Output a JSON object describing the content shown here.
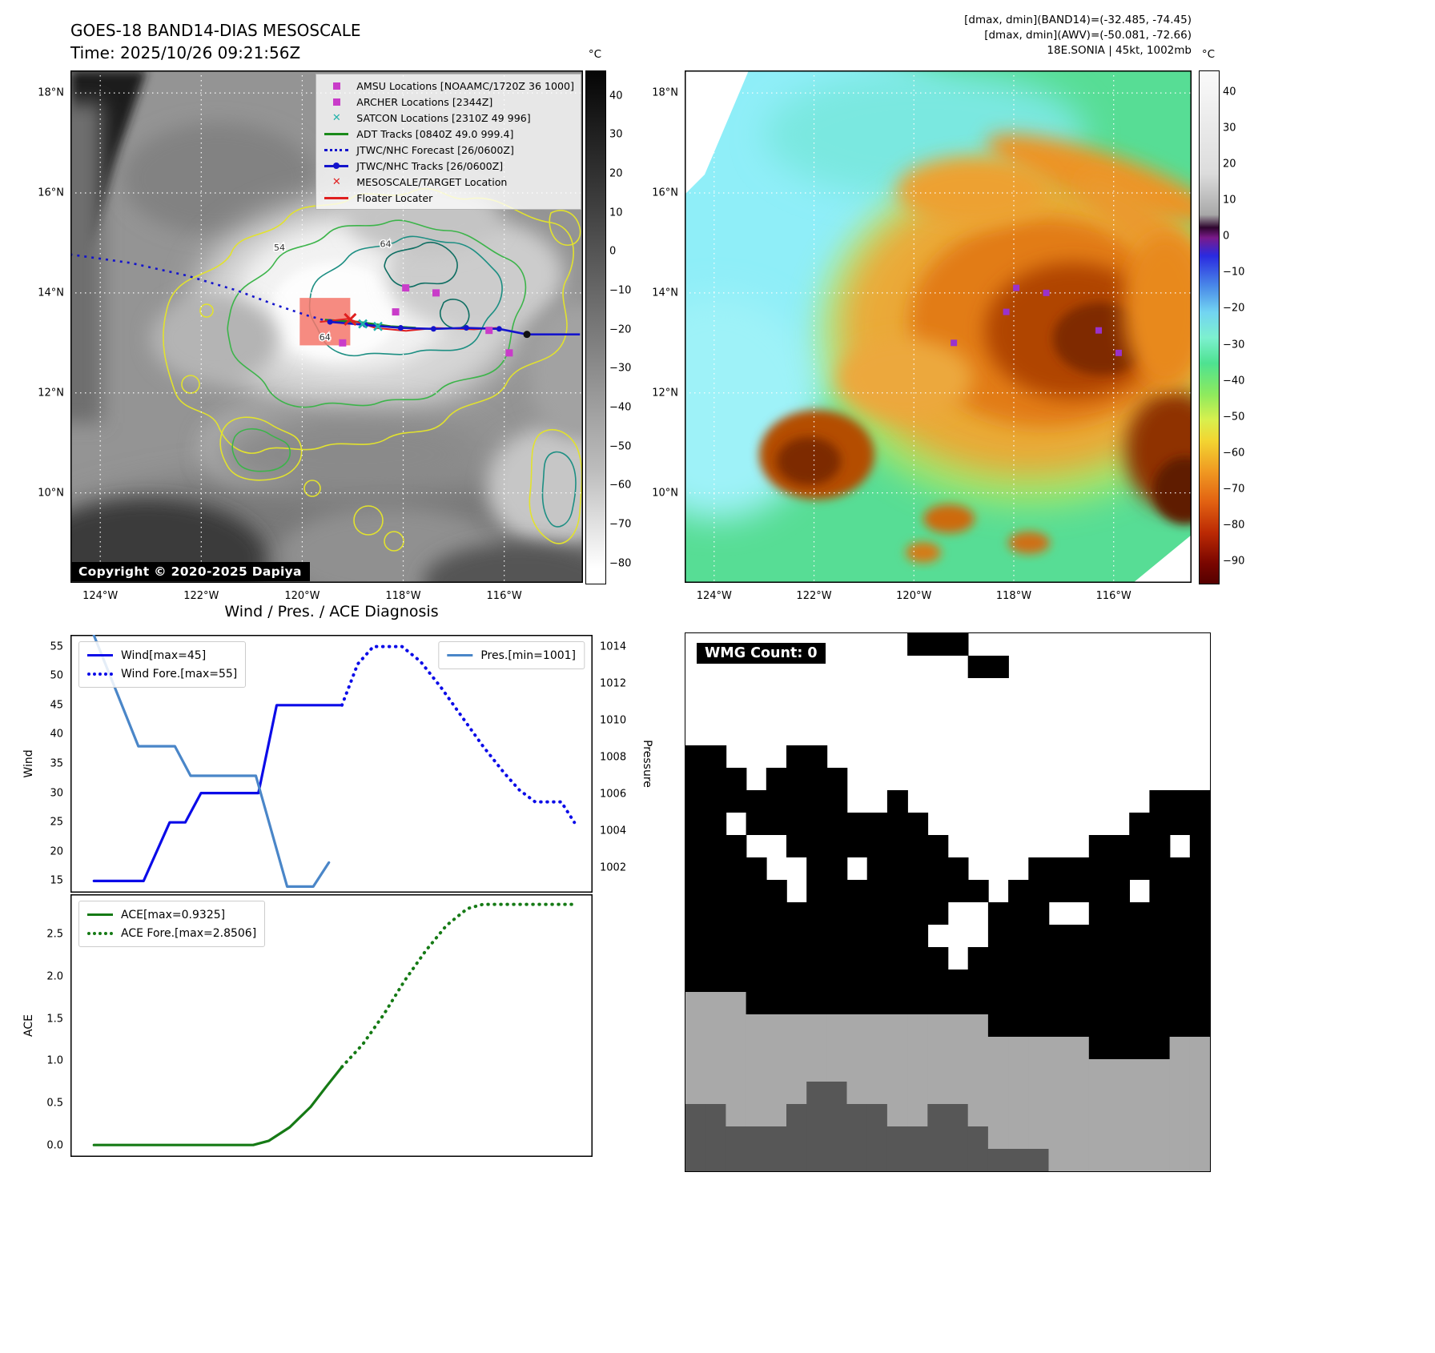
{
  "panel1": {
    "title_line1": "GOES-18 BAND14-DIAS MESOSCALE",
    "title_line2": "Time: 2025/10/26 09:21:56Z",
    "copyright": "Copyright © 2020-2025 Dapiya",
    "colorbar": {
      "unit": "°C",
      "ticks": [
        "40",
        "30",
        "20",
        "10",
        "0",
        "−10",
        "−20",
        "−30",
        "−40",
        "−50",
        "−60",
        "−70",
        "−80"
      ]
    },
    "legend": [
      {
        "marker": "square",
        "color": "#c93cc9",
        "label": "AMSU Locations [NOAAMC/1720Z 36 1000]"
      },
      {
        "marker": "square",
        "color": "#c93cc9",
        "label": "ARCHER Locations [2344Z]"
      },
      {
        "marker": "x",
        "color": "#20b2aa",
        "label": "SATCON Locations [2310Z 49 996]"
      },
      {
        "marker": "line",
        "color": "#1a8a1a",
        "label": "ADT Tracks [0840Z 49.0 999.4]"
      },
      {
        "marker": "dotted",
        "color": "#1414cc",
        "label": "JTWC/NHC Forecast [26/0600Z]"
      },
      {
        "marker": "line-dot",
        "color": "#1414cc",
        "label": "JTWC/NHC Tracks [26/0600Z]"
      },
      {
        "marker": "x",
        "color": "#e02020",
        "label": "MESOSCALE/TARGET Location"
      },
      {
        "marker": "line",
        "color": "#e02020",
        "label": "Floater Locater"
      }
    ],
    "contour_labels": [
      {
        "text": "54",
        "lon": -120.45,
        "lat": 14.85
      },
      {
        "text": "64",
        "lon": -118.35,
        "lat": 14.92
      },
      {
        "text": "64",
        "lon": -119.55,
        "lat": 13.05
      }
    ],
    "overlays": {
      "target_box": {
        "lon": [
          -120.05,
          -119.05
        ],
        "lat": [
          12.95,
          13.9
        ]
      },
      "forecast_track": [
        [
          -124.6,
          14.77
        ],
        [
          -123.4,
          14.6
        ],
        [
          -122.3,
          14.35
        ],
        [
          -121.3,
          14.05
        ],
        [
          -120.5,
          13.75
        ],
        [
          -119.9,
          13.55
        ],
        [
          -119.45,
          13.42
        ]
      ],
      "jtwc_track": [
        [
          -119.45,
          13.42
        ],
        [
          -118.75,
          13.36
        ],
        [
          -118.05,
          13.3
        ],
        [
          -117.4,
          13.28
        ],
        [
          -116.75,
          13.3
        ],
        [
          -116.1,
          13.28
        ],
        [
          -115.55,
          13.17
        ],
        [
          -114.5,
          13.17
        ]
      ],
      "adt_track": [
        [
          -119.55,
          13.46
        ],
        [
          -118.9,
          13.42
        ],
        [
          -118.25,
          13.33
        ],
        [
          -117.75,
          13.3
        ]
      ],
      "floater_track": [
        [
          -119.65,
          13.42
        ],
        [
          -119.1,
          13.48
        ],
        [
          -118.55,
          13.3
        ],
        [
          -117.95,
          13.24
        ],
        [
          -117.35,
          13.3
        ],
        [
          -116.6,
          13.27
        ],
        [
          -116.15,
          13.3
        ]
      ],
      "amsu_points": [
        [
          -117.95,
          14.1
        ],
        [
          -117.35,
          14.0
        ],
        [
          -118.15,
          13.62
        ],
        [
          -119.2,
          13.0
        ],
        [
          -116.3,
          13.25
        ],
        [
          -115.9,
          12.8
        ]
      ],
      "satcon_points": [
        [
          -118.8,
          13.38
        ],
        [
          -118.5,
          13.33
        ]
      ],
      "target_point": [
        -119.05,
        13.47
      ],
      "end_point": [
        -115.55,
        13.17
      ]
    }
  },
  "panel2": {
    "header_line1": "[dmax, dmin](BAND14)=(-32.485, -74.45)",
    "header_line2": "[dmax, dmin](AWV)=(-50.081, -72.66)",
    "header_line3": "18E.SONIA | 45kt, 1002mb",
    "colorbar": {
      "unit": "°C",
      "ticks": [
        "40",
        "30",
        "20",
        "10",
        "0",
        "−10",
        "−20",
        "−30",
        "−40",
        "−50",
        "−60",
        "−70",
        "−80",
        "−90"
      ]
    }
  },
  "geo": {
    "lat_ticks": [
      {
        "value": 18,
        "label": "18°N"
      },
      {
        "value": 16,
        "label": "16°N"
      },
      {
        "value": 14,
        "label": "14°N"
      },
      {
        "value": 12,
        "label": "12°N"
      },
      {
        "value": 10,
        "label": "10°N"
      }
    ],
    "lon_ticks": [
      {
        "value": -124,
        "label": "124°W"
      },
      {
        "value": -122,
        "label": "122°W"
      },
      {
        "value": -120,
        "label": "120°W"
      },
      {
        "value": -118,
        "label": "118°W"
      },
      {
        "value": -116,
        "label": "116°W"
      }
    ],
    "lat_range": [
      18.45,
      8.2
    ],
    "lon_range": [
      -124.59,
      -114.44
    ]
  },
  "panel3": {
    "title": "Wind / Pres. / ACE Diagnosis",
    "wind_axis_label": "Wind",
    "pressure_axis_label": "Pressure",
    "ace_axis_label": "ACE"
  },
  "chart_data": [
    {
      "type": "line",
      "title": "Wind / Pres. / ACE Diagnosis",
      "x_range": [
        0,
        100
      ],
      "y_left_label": "Wind",
      "y_left_ticks": [
        15,
        20,
        25,
        30,
        35,
        40,
        45,
        50,
        55
      ],
      "y_left_range": [
        13,
        57
      ],
      "y_right_label": "Pressure",
      "y_right_ticks": [
        1002,
        1004,
        1006,
        1008,
        1010,
        1012,
        1014
      ],
      "y_right_range": [
        1000.67,
        1014.63
      ],
      "series": [
        {
          "name": "Wind[max=45]",
          "color": "#0b0be8",
          "style": "solid",
          "axis": "left",
          "points": [
            [
              4.5,
              15
            ],
            [
              14,
              15
            ],
            [
              19,
              25
            ],
            [
              22,
              25
            ],
            [
              25,
              30
            ],
            [
              36,
              30
            ],
            [
              39.5,
              45
            ],
            [
              52,
              45
            ]
          ]
        },
        {
          "name": "Wind Fore.[max=55]",
          "color": "#0b0be8",
          "style": "dotted",
          "axis": "left",
          "points": [
            [
              52,
              45
            ],
            [
              55,
              52
            ],
            [
              58,
              55
            ],
            [
              63.5,
              55
            ],
            [
              67,
              52.5
            ],
            [
              71,
              48
            ],
            [
              75,
              43
            ],
            [
              79,
              38
            ],
            [
              83,
              33.5
            ],
            [
              86,
              30.5
            ],
            [
              89,
              28.5
            ],
            [
              94,
              28.5
            ],
            [
              96.5,
              25
            ]
          ]
        },
        {
          "name": "Pres.[min=1001]",
          "color": "#4a86c8",
          "style": "solid",
          "axis": "right",
          "points": [
            [
              4.5,
              1014.6
            ],
            [
              13,
              1008.6
            ],
            [
              20,
              1008.6
            ],
            [
              23,
              1007
            ],
            [
              35.5,
              1007
            ],
            [
              41.5,
              1001
            ],
            [
              46.5,
              1001
            ],
            [
              49.5,
              1002.3
            ]
          ]
        }
      ],
      "legends": [
        {
          "pos": "tl",
          "items": [
            0,
            1
          ]
        },
        {
          "pos": "tr",
          "items": [
            2
          ]
        }
      ]
    },
    {
      "type": "line",
      "x_range": [
        0,
        100
      ],
      "y_left_label": "ACE",
      "y_left_ticks": [
        0,
        0.5,
        1,
        1.5,
        2,
        2.5
      ],
      "y_left_tick_labels": [
        "0.0",
        "0.5",
        "1.0",
        "1.5",
        "2.0",
        "2.5"
      ],
      "y_left_range": [
        -0.13,
        2.97
      ],
      "series": [
        {
          "name": "ACE[max=0.9325]",
          "color": "#157a15",
          "style": "solid",
          "axis": "left",
          "points": [
            [
              4.5,
              0.01
            ],
            [
              35,
              0.01
            ],
            [
              38,
              0.06
            ],
            [
              42,
              0.22
            ],
            [
              46,
              0.46
            ],
            [
              49,
              0.7
            ],
            [
              52,
              0.9325
            ]
          ]
        },
        {
          "name": "ACE Fore.[max=2.8506]",
          "color": "#157a15",
          "style": "dotted",
          "axis": "left",
          "points": [
            [
              52,
              0.9325
            ],
            [
              56,
              1.2
            ],
            [
              60,
              1.55
            ],
            [
              64,
              1.95
            ],
            [
              68,
              2.3
            ],
            [
              72,
              2.6
            ],
            [
              76,
              2.8
            ],
            [
              79,
              2.8506
            ],
            [
              97,
              2.8506
            ]
          ]
        }
      ],
      "legends": [
        {
          "pos": "tl",
          "items": [
            0,
            1
          ]
        }
      ]
    }
  ],
  "panel4": {
    "wmg_label": "WMG Count: 0",
    "cell_colors": {
      "W": "#ffffff",
      "B": "#000000",
      "G": "#a9a9a9",
      "D": "#575757"
    },
    "grid_rows": [
      "WWWWWWWWWWWBBBWWWWWWWWWWWW",
      "WWWWWWWWWWWWWWBBWWWWWWWWWW",
      "WWWWWWWWWWWWWWWWWWWWWWWWWW",
      "WWWWWWWWWWWWWWWWWWWWWWWWWW",
      "WWWWWWWWWWWWWWWWWWWWWWWWWW",
      "BBWWWBBWWWWWWWWWWWWWWWWWWW",
      "BBBWBBBBWWWWWWWWWWWWWWWWWW",
      "BBBBBBBBWWBWWWWWWWWWWWWBBB",
      "BBWBBBBBBBBBWWWWWWWWWWBBBB",
      "BBBWWBBBBBBBBWWWWWWWBBBBWB",
      "BBBBWWBBWBBBBBWWWBBBBBBBBB",
      "BBBBBWBBBBBBBBBWBBBBBBWBBB",
      "BBBBBBBBBBBBBWWBBBWWBBBBBB",
      "BBBBBBBBBBBBWWWBBBBBBBBBBB",
      "BBBBBBBBBBBBBWBBBBBBBBBBBB",
      "BBBBBBBBBBBBBBBBBBBBBBBBBB",
      "GGGBBBBBBBBBBBBBBBBBBBBBBB",
      "GGGGGGGGGGGGGGGBBBBBBBBBBB",
      "GGGGGGGGGGGGGGGGGGGGBBBBGG",
      "GGGGGGGGGGGGGGGGGGGGGGGGGG",
      "GGGGGGDDGGGGGGGGGGGGGGGGGG",
      "DDGGGDDDDDGGDDGGGGGGGGGGGG",
      "DDDDDDDDDDDDDDDGGGGGGGGGGG",
      "DDDDDDDDDDDDDDDDDDGGGGGGGG"
    ]
  }
}
